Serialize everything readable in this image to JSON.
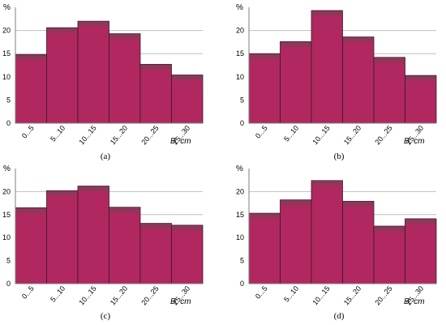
{
  "colors": {
    "bar_fill": "#b0285f",
    "bar_top": "#8a3a5a",
    "bar_edge": "#3a1a2a",
    "grid": "#bfbfbf",
    "axis": "#7f7f7f",
    "highlight": "#ff1f7a"
  },
  "chart_data": [
    {
      "type": "bar",
      "panel_label": "(a)",
      "categories": [
        "0...5",
        "5...10",
        "10...15",
        "15...20",
        "20...25",
        "25...30"
      ],
      "values": [
        14.8,
        20.6,
        22.0,
        19.3,
        12.7,
        10.4
      ],
      "ylabel": "%",
      "xlabel": "B, cm",
      "ylim": [
        0,
        25
      ],
      "yticks": [
        0,
        5,
        10,
        15,
        20
      ],
      "grid": true
    },
    {
      "type": "bar",
      "panel_label": "(b)",
      "categories": [
        "0...5",
        "5...10",
        "10...15",
        "15...20",
        "20...25",
        "25...30"
      ],
      "values": [
        15.0,
        17.6,
        24.3,
        18.6,
        14.2,
        10.3
      ],
      "ylabel": "%",
      "xlabel": "B, cm",
      "ylim": [
        0,
        25
      ],
      "yticks": [
        0,
        5,
        10,
        15,
        20
      ],
      "grid": true
    },
    {
      "type": "bar",
      "panel_label": "(c)",
      "categories": [
        "0...5",
        "5...10",
        "10...15",
        "15...20",
        "20...25",
        "25...30"
      ],
      "values": [
        16.5,
        20.2,
        21.2,
        16.6,
        13.1,
        12.7
      ],
      "ylabel": "%",
      "xlabel": "B, cm",
      "ylim": [
        0,
        25
      ],
      "yticks": [
        0,
        5,
        10,
        15,
        20
      ],
      "grid": true
    },
    {
      "type": "bar",
      "panel_label": "(d)",
      "categories": [
        "0...5",
        "5...10",
        "10...15",
        "15...20",
        "20...25",
        "25...30"
      ],
      "values": [
        15.3,
        18.2,
        22.4,
        17.9,
        12.5,
        14.1
      ],
      "ylabel": "%",
      "xlabel": "B, cm",
      "ylim": [
        0,
        25
      ],
      "yticks": [
        0,
        5,
        10,
        15,
        20
      ],
      "grid": true
    }
  ]
}
